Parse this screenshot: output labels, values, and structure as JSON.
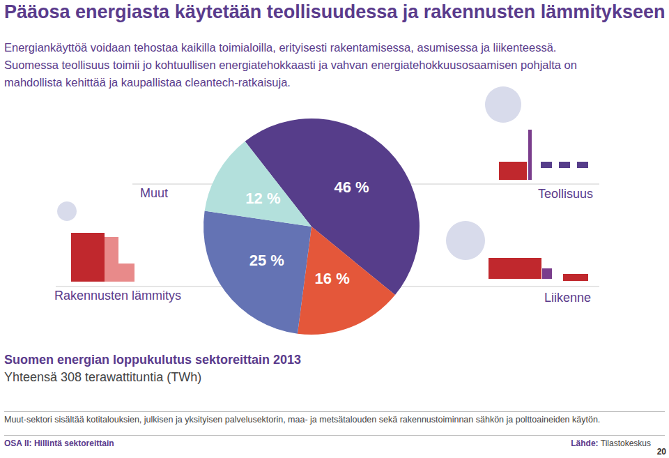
{
  "chart_data": {
    "type": "pie",
    "title": "Pääosa energiasta käytetään teollisuudessa ja rakennusten lämmitykseen",
    "subtitle": [
      "Energiankäyttöä voidaan tehostaa kaikilla toimialoilla, erityisesti rakentamisessa, asumisessa ja liikenteessä.",
      "Suomessa teollisuus toimii jo kohtuullisen energiatehokkaasti ja vahvan energiatehokkuusosaamisen pohjalta on",
      "mahdollista kehittää ja kaupallistaa cleantech-ratkaisuja."
    ],
    "caption": "Suomen energian loppukulutus sektoreittain 2013",
    "caption_note": "Yhteensä 308 terawattituntia (TWh)",
    "categories": [
      "Teollisuus",
      "Liikenne",
      "Rakennusten lämmitys",
      "Muut"
    ],
    "values": [
      46,
      16,
      25,
      12
    ],
    "value_labels": [
      "46 %",
      "16 %",
      "25 %",
      "12 %"
    ],
    "colors": [
      "#563d8a",
      "#e4573a",
      "#6473b4",
      "#b3e0dc"
    ],
    "data_labels": true,
    "footnote": "Muut-sektori sisältää kotitalouksien, julkisen ja yksityisen palvelusektorin, maa- ja metsätalouden sekä rakennustoiminnan sähkön ja polttoaineiden käytön.",
    "footer": {
      "section": "OSA II: Hillintä sektoreittain",
      "source_label": "Lähde:",
      "source": "Tilastokeskus",
      "page": 20
    }
  }
}
